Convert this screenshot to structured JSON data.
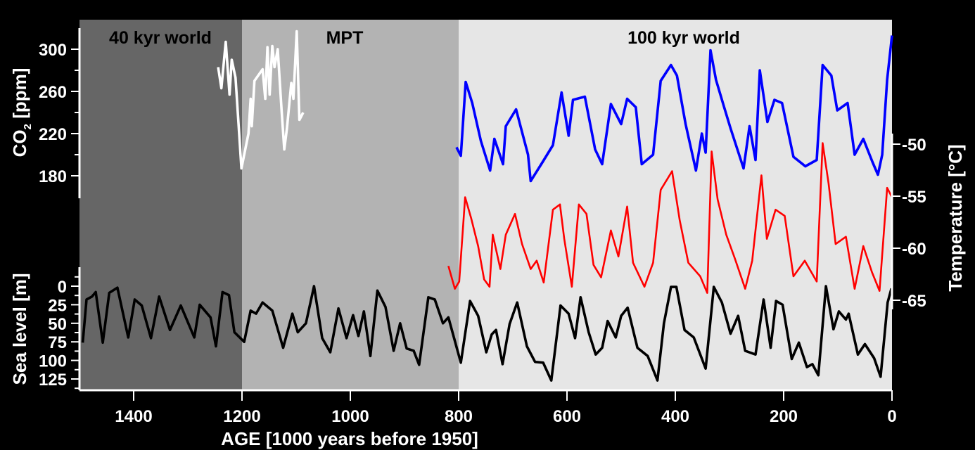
{
  "chart_data": {
    "type": "line",
    "xlabel": "AGE [1000 years before 1950]",
    "xlim": [
      1500,
      0
    ],
    "x_ticks": [
      "1400",
      "1200",
      "1000",
      "800",
      "600",
      "400",
      "200",
      "0"
    ],
    "eras": [
      {
        "label": "40 kyr world",
        "from": 1500,
        "to": 1200,
        "color": "#666666"
      },
      {
        "label": "MPT",
        "from": 1200,
        "to": 800,
        "color": "#b3b3b3"
      },
      {
        "label": "100 kyr world",
        "from": 800,
        "to": 0,
        "color": "#e6e6e6"
      }
    ],
    "axes": {
      "co2": {
        "label_main": "CO",
        "label_sub": "2",
        "label_unit": " [ppm]",
        "ylim": [
          160,
          320
        ],
        "ticks": [
          "300",
          "260",
          "220",
          "180"
        ],
        "side": "left"
      },
      "temperature": {
        "label": "Temperature [°C]",
        "ylim": [
          -49,
          -65.8
        ],
        "ticks": [
          "-50",
          "-55",
          "-60",
          "-65"
        ],
        "side": "right"
      },
      "sea_level": {
        "label": "Sea level [m]",
        "ylim": [
          -24,
          139
        ],
        "inverted": true,
        "ticks": [
          "0",
          "25",
          "50",
          "75",
          "100",
          "125"
        ],
        "side": "left"
      }
    },
    "series": [
      {
        "axis": "co2",
        "color": "#ffffff",
        "points": [
          [
            1244,
            283
          ],
          [
            1238,
            263
          ],
          [
            1230,
            307
          ],
          [
            1223,
            257
          ],
          [
            1219,
            290
          ],
          [
            1212,
            273
          ],
          [
            1201,
            187
          ],
          [
            1188,
            220
          ],
          [
            1184,
            253
          ],
          [
            1182,
            227
          ],
          [
            1177,
            270
          ],
          [
            1162,
            281
          ],
          [
            1157,
            253
          ],
          [
            1153,
            302
          ],
          [
            1149,
            257
          ],
          [
            1144,
            303
          ],
          [
            1140,
            283
          ],
          [
            1134,
            300
          ],
          [
            1127,
            243
          ],
          [
            1122,
            205
          ],
          [
            1117,
            225
          ],
          [
            1109,
            268
          ],
          [
            1105,
            253
          ],
          [
            1099,
            317
          ],
          [
            1094,
            233
          ],
          [
            1087,
            240
          ]
        ]
      },
      {
        "axis": "co2",
        "color": "#0000ff",
        "points": [
          [
            804,
            207
          ],
          [
            796,
            199
          ],
          [
            787,
            269
          ],
          [
            775,
            249
          ],
          [
            759,
            213
          ],
          [
            742,
            185
          ],
          [
            734,
            215
          ],
          [
            718,
            191
          ],
          [
            713,
            227
          ],
          [
            694,
            243
          ],
          [
            672,
            200
          ],
          [
            667,
            175
          ],
          [
            645,
            193
          ],
          [
            626,
            209
          ],
          [
            610,
            259
          ],
          [
            597,
            218
          ],
          [
            589,
            252
          ],
          [
            567,
            255
          ],
          [
            548,
            205
          ],
          [
            535,
            191
          ],
          [
            519,
            248
          ],
          [
            500,
            229
          ],
          [
            489,
            253
          ],
          [
            473,
            245
          ],
          [
            462,
            191
          ],
          [
            441,
            200
          ],
          [
            427,
            270
          ],
          [
            408,
            285
          ],
          [
            397,
            275
          ],
          [
            381,
            229
          ],
          [
            362,
            185
          ],
          [
            351,
            220
          ],
          [
            344,
            202
          ],
          [
            335,
            299
          ],
          [
            325,
            271
          ],
          [
            311,
            247
          ],
          [
            298,
            225
          ],
          [
            274,
            187
          ],
          [
            263,
            227
          ],
          [
            252,
            195
          ],
          [
            244,
            280
          ],
          [
            230,
            231
          ],
          [
            217,
            252
          ],
          [
            203,
            249
          ],
          [
            182,
            198
          ],
          [
            160,
            189
          ],
          [
            139,
            195
          ],
          [
            128,
            285
          ],
          [
            112,
            275
          ],
          [
            101,
            242
          ],
          [
            82,
            249
          ],
          [
            69,
            200
          ],
          [
            53,
            215
          ],
          [
            36,
            193
          ],
          [
            26,
            181
          ],
          [
            18,
            200
          ],
          [
            9,
            271
          ],
          [
            0,
            313
          ]
        ]
      },
      {
        "axis": "temperature",
        "color": "#ff0000",
        "points": [
          [
            819,
            -61.7
          ],
          [
            807,
            -63.9
          ],
          [
            799,
            -63.2
          ],
          [
            788,
            -55.1
          ],
          [
            777,
            -57.1
          ],
          [
            764,
            -59.8
          ],
          [
            753,
            -63.0
          ],
          [
            743,
            -63.7
          ],
          [
            737,
            -58.7
          ],
          [
            723,
            -62.0
          ],
          [
            713,
            -58.7
          ],
          [
            696,
            -56.7
          ],
          [
            683,
            -59.6
          ],
          [
            667,
            -62.0
          ],
          [
            656,
            -61.2
          ],
          [
            643,
            -63.3
          ],
          [
            626,
            -56.3
          ],
          [
            613,
            -55.8
          ],
          [
            605,
            -59.1
          ],
          [
            591,
            -63.7
          ],
          [
            578,
            -55.8
          ],
          [
            564,
            -56.7
          ],
          [
            551,
            -61.6
          ],
          [
            537,
            -62.8
          ],
          [
            519,
            -58.3
          ],
          [
            505,
            -60.8
          ],
          [
            489,
            -56.0
          ],
          [
            478,
            -61.4
          ],
          [
            457,
            -63.7
          ],
          [
            441,
            -61.4
          ],
          [
            427,
            -54.4
          ],
          [
            406,
            -52.6
          ],
          [
            392,
            -57.3
          ],
          [
            376,
            -61.4
          ],
          [
            354,
            -62.7
          ],
          [
            341,
            -64.3
          ],
          [
            333,
            -50.7
          ],
          [
            322,
            -55.3
          ],
          [
            306,
            -58.7
          ],
          [
            290,
            -61.0
          ],
          [
            271,
            -63.9
          ],
          [
            258,
            -61.2
          ],
          [
            241,
            -53.0
          ],
          [
            231,
            -59.1
          ],
          [
            215,
            -56.3
          ],
          [
            198,
            -56.9
          ],
          [
            182,
            -62.7
          ],
          [
            161,
            -61.2
          ],
          [
            139,
            -63.2
          ],
          [
            128,
            -49.9
          ],
          [
            117,
            -53.8
          ],
          [
            104,
            -59.6
          ],
          [
            85,
            -58.9
          ],
          [
            69,
            -63.9
          ],
          [
            53,
            -59.8
          ],
          [
            37,
            -62.3
          ],
          [
            23,
            -64.1
          ],
          [
            9,
            -54.2
          ],
          [
            0,
            -55.1
          ]
        ]
      },
      {
        "axis": "sea_level",
        "color": "#000000",
        "points": [
          [
            1494,
            76
          ],
          [
            1487,
            18
          ],
          [
            1477,
            14
          ],
          [
            1470,
            8
          ],
          [
            1457,
            76
          ],
          [
            1445,
            9
          ],
          [
            1430,
            2
          ],
          [
            1410,
            69
          ],
          [
            1398,
            18
          ],
          [
            1385,
            26
          ],
          [
            1368,
            70
          ],
          [
            1353,
            14
          ],
          [
            1333,
            59
          ],
          [
            1313,
            26
          ],
          [
            1288,
            69
          ],
          [
            1278,
            25
          ],
          [
            1258,
            42
          ],
          [
            1248,
            81
          ],
          [
            1236,
            8
          ],
          [
            1224,
            12
          ],
          [
            1214,
            62
          ],
          [
            1196,
            75
          ],
          [
            1184,
            33
          ],
          [
            1174,
            37
          ],
          [
            1162,
            22
          ],
          [
            1144,
            33
          ],
          [
            1124,
            83
          ],
          [
            1107,
            37
          ],
          [
            1097,
            62
          ],
          [
            1082,
            50
          ],
          [
            1067,
            0
          ],
          [
            1052,
            70
          ],
          [
            1037,
            89
          ],
          [
            1022,
            30
          ],
          [
            1007,
            70
          ],
          [
            995,
            39
          ],
          [
            985,
            67
          ],
          [
            975,
            34
          ],
          [
            963,
            94
          ],
          [
            950,
            6
          ],
          [
            935,
            28
          ],
          [
            920,
            87
          ],
          [
            908,
            50
          ],
          [
            896,
            84
          ],
          [
            883,
            87
          ],
          [
            873,
            106
          ],
          [
            856,
            15
          ],
          [
            844,
            18
          ],
          [
            829,
            50
          ],
          [
            819,
            42
          ],
          [
            796,
            103
          ],
          [
            779,
            20
          ],
          [
            764,
            40
          ],
          [
            749,
            89
          ],
          [
            739,
            65
          ],
          [
            731,
            59
          ],
          [
            719,
            105
          ],
          [
            706,
            51
          ],
          [
            692,
            22
          ],
          [
            674,
            81
          ],
          [
            659,
            102
          ],
          [
            644,
            103
          ],
          [
            629,
            127
          ],
          [
            612,
            26
          ],
          [
            597,
            37
          ],
          [
            585,
            70
          ],
          [
            575,
            15
          ],
          [
            560,
            62
          ],
          [
            547,
            92
          ],
          [
            535,
            83
          ],
          [
            525,
            47
          ],
          [
            510,
            69
          ],
          [
            500,
            40
          ],
          [
            488,
            29
          ],
          [
            470,
            83
          ],
          [
            451,
            94
          ],
          [
            433,
            127
          ],
          [
            421,
            50
          ],
          [
            408,
            1
          ],
          [
            398,
            1
          ],
          [
            383,
            59
          ],
          [
            366,
            69
          ],
          [
            344,
            111
          ],
          [
            329,
            1
          ],
          [
            314,
            22
          ],
          [
            298,
            64
          ],
          [
            284,
            40
          ],
          [
            271,
            87
          ],
          [
            252,
            92
          ],
          [
            237,
            18
          ],
          [
            224,
            83
          ],
          [
            214,
            20
          ],
          [
            202,
            25
          ],
          [
            185,
            98
          ],
          [
            172,
            76
          ],
          [
            157,
            109
          ],
          [
            147,
            105
          ],
          [
            136,
            120
          ],
          [
            122,
            0
          ],
          [
            108,
            58
          ],
          [
            98,
            34
          ],
          [
            85,
            45
          ],
          [
            80,
            37
          ],
          [
            63,
            92
          ],
          [
            50,
            78
          ],
          [
            33,
            97
          ],
          [
            21,
            122
          ],
          [
            8,
            22
          ],
          [
            1,
            3
          ]
        ]
      }
    ]
  }
}
